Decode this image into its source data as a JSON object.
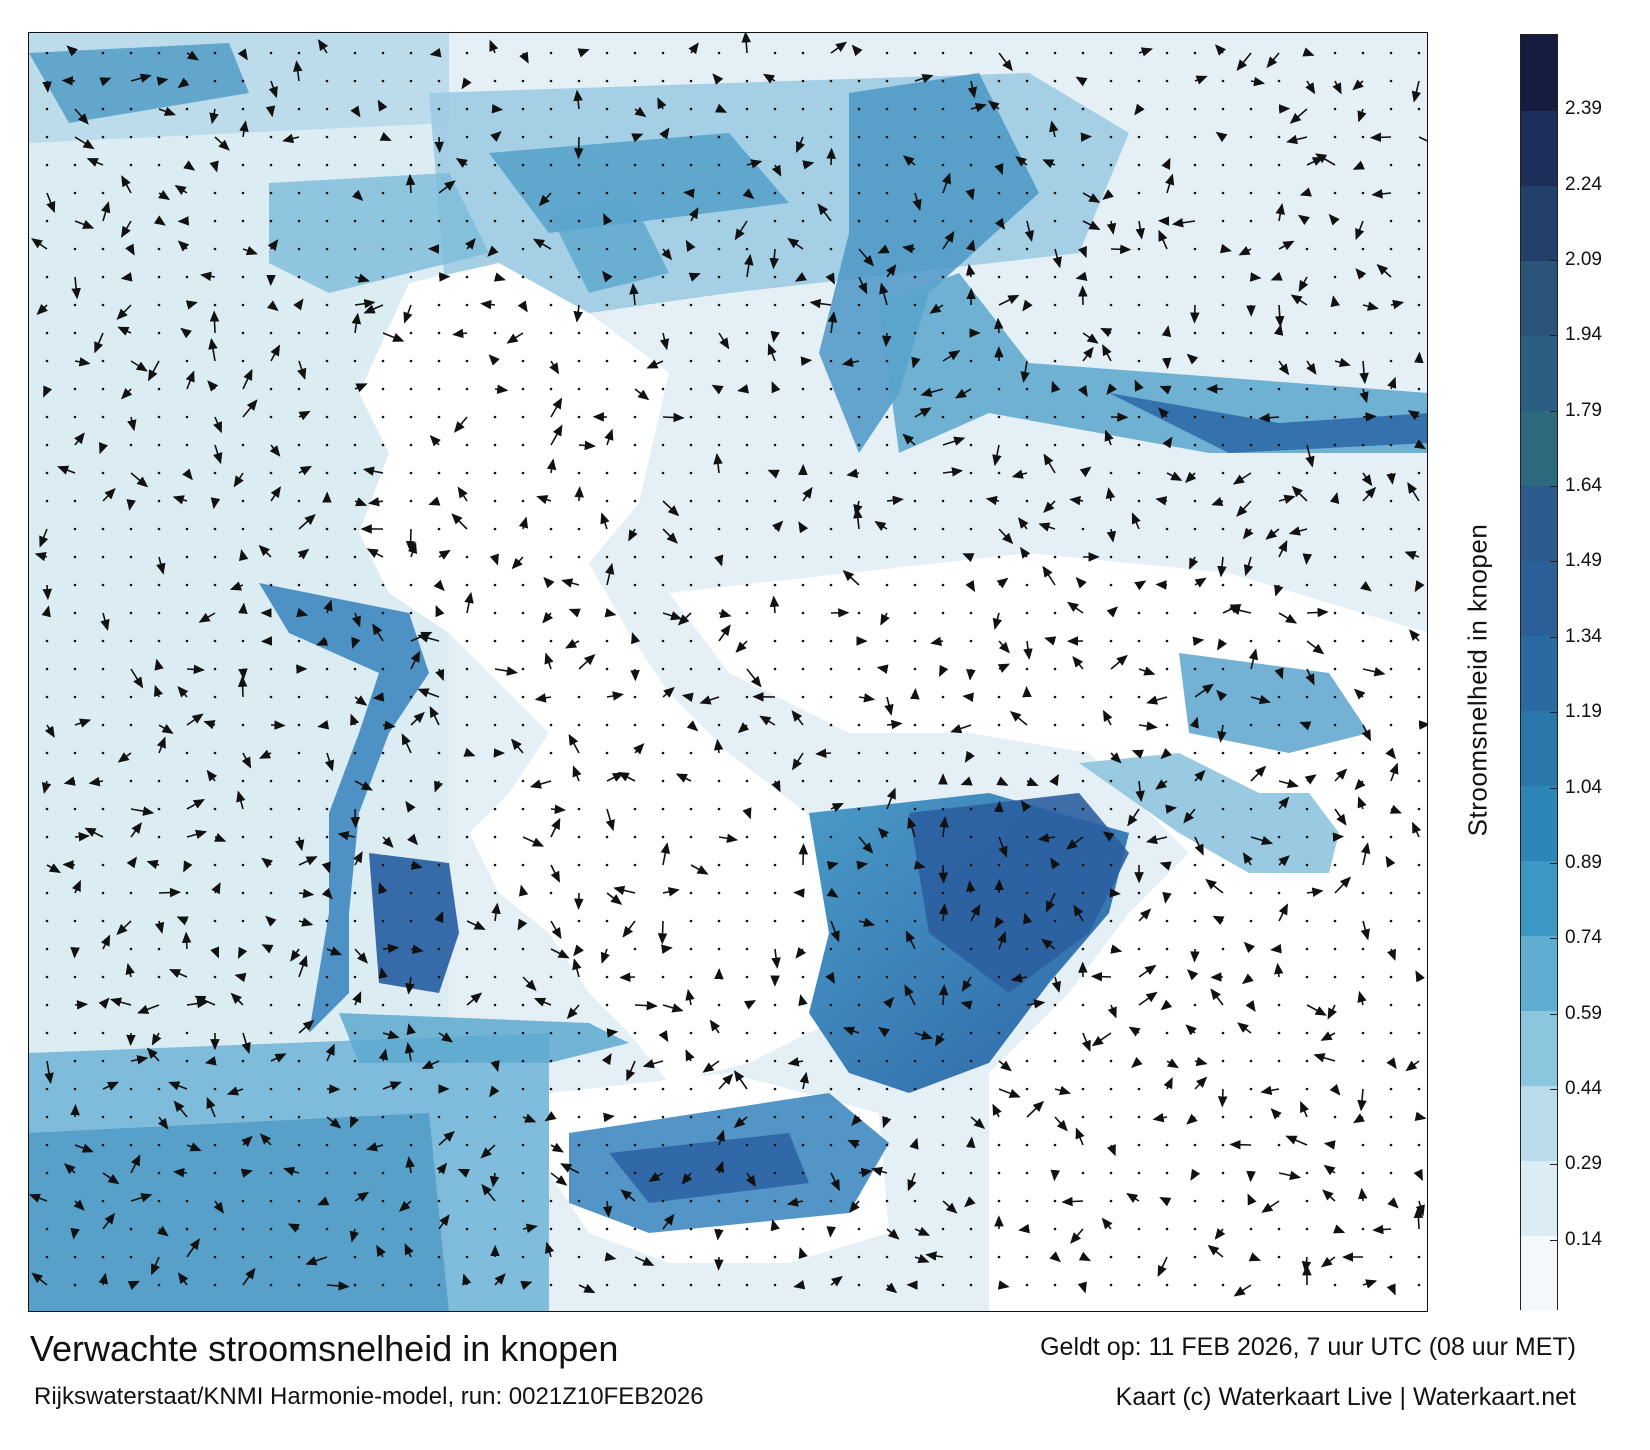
{
  "title": "Verwachte stroomsnelheid in knopen",
  "subtitle": "Rijkswaterstaat/KNMI Harmonie-model, run: 0021Z10FEB2026",
  "valid_time": "Geldt op: 11 FEB 2026, 7 uur UTC (08 uur MET)",
  "credit": "Kaart (c) Waterkaart Live | Waterkaart.net",
  "colorbar": {
    "label": "Stroomsnelheid in knopen",
    "min": 0,
    "max": 2.54,
    "ticks": [
      "0.14",
      "0.29",
      "0.44",
      "0.59",
      "0.74",
      "0.89",
      "1.04",
      "1.19",
      "1.34",
      "1.49",
      "1.64",
      "1.79",
      "1.94",
      "2.09",
      "2.24",
      "2.39"
    ],
    "colors": [
      "#f3f8fb",
      "#dcecf4",
      "#b9dbea",
      "#8cc5de",
      "#5fadd0",
      "#3c97c4",
      "#2e85b8",
      "#2a77ab",
      "#2a6aa2",
      "#2c5f97",
      "#2d5b8e",
      "#2e6a7e",
      "#2b5e80",
      "#2b5578",
      "#23406a",
      "#1e2f5a",
      "#161c40"
    ]
  },
  "colors": {
    "land": "#ffffff",
    "water_low": "#eef6fa",
    "water_mid": "#5ea9cf",
    "water_high": "#2d63a4",
    "arrow": "#111111"
  }
}
